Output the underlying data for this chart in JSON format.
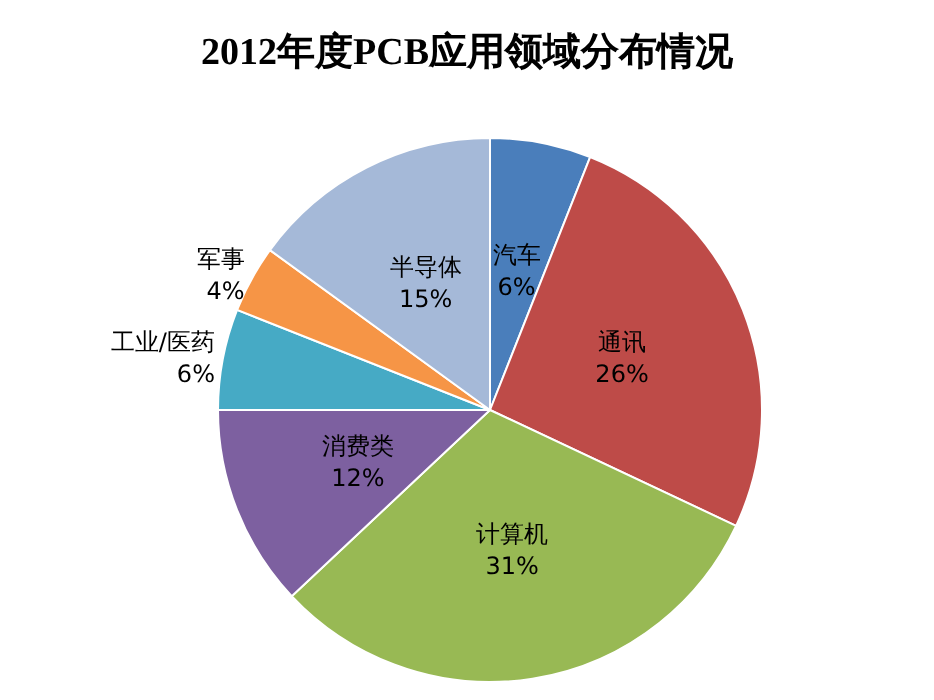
{
  "chart_data": {
    "type": "pie",
    "title": "2012年度PCB应用领域分布情况",
    "categories": [
      "汽车",
      "通讯",
      "计算机",
      "消费类",
      "工业/医药",
      "军事",
      "半导体"
    ],
    "values": [
      6,
      26,
      31,
      12,
      6,
      4,
      15
    ],
    "value_labels": [
      "6%",
      "26%",
      "31%",
      "12%",
      "6%",
      "4%",
      "15%"
    ],
    "colors": [
      "#4a7ebb",
      "#be4b48",
      "#98b954",
      "#7d60a0",
      "#46aac5",
      "#f69546",
      "#a5b9d8"
    ],
    "legend": false
  }
}
